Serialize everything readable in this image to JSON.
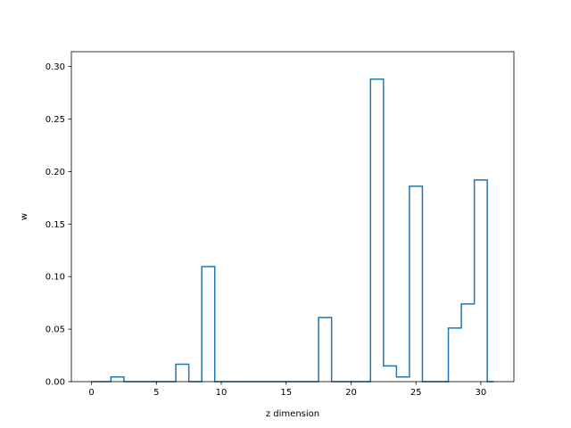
{
  "chart_data": {
    "type": "step",
    "title": "",
    "xlabel": "z dimension",
    "ylabel": "w",
    "xlim": [
      -1.55,
      32.55
    ],
    "ylim": [
      0,
      0.3141
    ],
    "xticks": [
      0,
      5,
      10,
      15,
      20,
      25,
      30
    ],
    "yticks": [
      0.0,
      0.05,
      0.1,
      0.15,
      0.2,
      0.25,
      0.3
    ],
    "grid": false,
    "legend": "none",
    "line_color": "#1f77b4",
    "x": [
      0,
      1,
      2,
      3,
      4,
      5,
      6,
      7,
      8,
      9,
      10,
      11,
      12,
      13,
      14,
      15,
      16,
      17,
      18,
      19,
      20,
      21,
      22,
      23,
      24,
      25,
      26,
      27,
      28,
      29,
      30,
      31
    ],
    "values": [
      0,
      0,
      0.0045,
      0,
      0,
      0,
      0,
      0.0165,
      0,
      0.1095,
      0,
      0,
      0,
      0,
      0,
      0,
      0,
      0,
      0.061,
      0,
      0,
      0,
      0.288,
      0.015,
      0.0045,
      0.186,
      0,
      0,
      0.051,
      0.074,
      0.192,
      0
    ]
  }
}
